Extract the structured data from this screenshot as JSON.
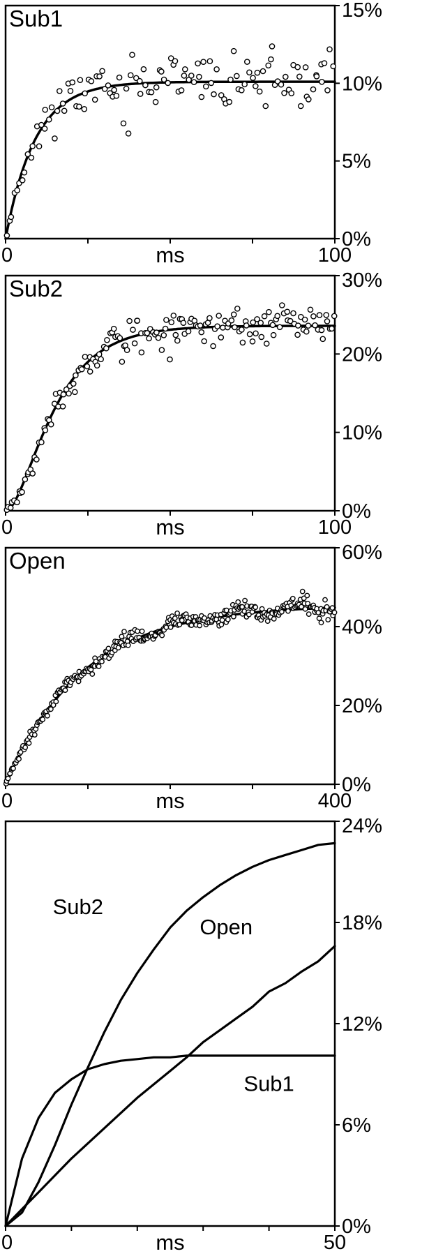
{
  "page": {
    "background": "#ffffff",
    "ink": "#000000",
    "description": "Four stacked kinetics panels: Sub1, Sub2, Open occupancy time courses with scatter data and exponential fits, plus a summary panel of three fitted curves."
  },
  "chart_data": [
    {
      "id": "sub1",
      "type": "scatter",
      "title": "Sub1",
      "xlabel": "ms",
      "ylabel": "",
      "x_range": [
        0,
        100
      ],
      "y_range": [
        0,
        15
      ],
      "y_tick_values": [
        0,
        5,
        10,
        15
      ],
      "y_tick_labels": [
        "0%",
        "5%",
        "10%",
        "15%"
      ],
      "x_tick_values": [
        0,
        25,
        50,
        75,
        100
      ],
      "x_end_labels": [
        "0",
        "100"
      ],
      "grid": false,
      "legend": "none",
      "fit": {
        "form": "exp",
        "plateau": 10.1,
        "tau": 9,
        "y0": 0
      },
      "scatter": {
        "n": 125,
        "noise_sd": 0.85,
        "seed": 11,
        "r": 3.6
      }
    },
    {
      "id": "sub2",
      "type": "scatter",
      "title": "Sub2",
      "xlabel": "ms",
      "ylabel": "",
      "x_range": [
        0,
        100
      ],
      "y_range": [
        0,
        30
      ],
      "y_tick_values": [
        0,
        10,
        20,
        30
      ],
      "y_tick_labels": [
        "0%",
        "10%",
        "20%",
        "30%"
      ],
      "x_tick_values": [
        0,
        25,
        50,
        75,
        100
      ],
      "x_end_labels": [
        "0",
        "100"
      ],
      "grid": false,
      "legend": "none",
      "fit": {
        "form": "exp2",
        "plateau": 23.6,
        "tau": 11,
        "y0": 0
      },
      "scatter": {
        "n": 160,
        "noise_sd": 1.15,
        "seed": 22,
        "r": 3.6
      }
    },
    {
      "id": "open",
      "type": "scatter",
      "title": "Open",
      "xlabel": "ms",
      "ylabel": "",
      "x_range": [
        0,
        400
      ],
      "y_range": [
        0,
        60
      ],
      "y_tick_values": [
        0,
        20,
        40,
        60
      ],
      "y_tick_labels": [
        "0%",
        "20%",
        "40%",
        "60%"
      ],
      "x_tick_values": [
        0,
        100,
        200,
        300,
        400
      ],
      "x_end_labels": [
        "0",
        "400"
      ],
      "grid": false,
      "legend": "none",
      "fit": {
        "form": "exp",
        "plateau": 45.5,
        "tau": 95,
        "y0": 0
      },
      "scatter": {
        "n": 310,
        "noise_sd": 1.1,
        "seed": 33,
        "r": 3.2,
        "wobble_amp": 1.2,
        "wobble_period": 70
      }
    },
    {
      "id": "summary",
      "type": "line",
      "title": "",
      "xlabel": "ms",
      "ylabel": "",
      "x_range": [
        0,
        50
      ],
      "y_range": [
        0,
        24
      ],
      "y_tick_values": [
        0,
        6,
        12,
        18,
        24
      ],
      "y_tick_labels": [
        "0%",
        "6%",
        "12%",
        "18%",
        "24%"
      ],
      "x_tick_values": [
        0,
        10,
        20,
        30,
        40,
        50
      ],
      "x_end_labels": [
        "0",
        "50"
      ],
      "grid": false,
      "legend": "inline-labels",
      "series": [
        {
          "name": "Sub2",
          "x": [
            0,
            2.5,
            5,
            7.5,
            10,
            12.5,
            15,
            17.5,
            20,
            22.5,
            25,
            27.5,
            30,
            32.5,
            35,
            37.5,
            40,
            42.5,
            45,
            47.5,
            50
          ],
          "y": [
            0,
            0.8,
            2.6,
            4.8,
            7.2,
            9.4,
            11.5,
            13.4,
            15.0,
            16.4,
            17.7,
            18.7,
            19.5,
            20.2,
            20.8,
            21.3,
            21.7,
            22.0,
            22.3,
            22.6,
            22.7
          ]
        },
        {
          "name": "Open",
          "x": [
            0,
            2.5,
            5,
            7.5,
            10,
            12.5,
            15,
            17.5,
            20,
            22.5,
            25,
            27.5,
            30,
            32.5,
            35,
            37.5,
            40,
            42.5,
            45,
            47.5,
            50
          ],
          "y": [
            0,
            1.0,
            2.0,
            3.0,
            4.0,
            4.9,
            5.8,
            6.7,
            7.6,
            8.4,
            9.2,
            10.0,
            10.9,
            11.6,
            12.3,
            13.0,
            13.9,
            14.4,
            15.1,
            15.7,
            16.6
          ]
        },
        {
          "name": "Sub1",
          "x": [
            0,
            2.5,
            5,
            7.5,
            10,
            12.5,
            15,
            17.5,
            20,
            22.5,
            25,
            27.5,
            30,
            32.5,
            35,
            37.5,
            40,
            42.5,
            45,
            47.5,
            50
          ],
          "y": [
            0,
            4.0,
            6.4,
            7.9,
            8.7,
            9.3,
            9.6,
            9.8,
            9.9,
            10.0,
            10.0,
            10.1,
            10.1,
            10.1,
            10.1,
            10.1,
            10.1,
            10.1,
            10.1,
            10.1,
            10.1
          ]
        }
      ],
      "annotations": [
        {
          "text": "Sub2",
          "x": 11,
          "y": 18.5
        },
        {
          "text": "Open",
          "x": 33.5,
          "y": 17.3
        },
        {
          "text": "Sub1",
          "x": 40,
          "y": 8.0
        }
      ]
    }
  ]
}
